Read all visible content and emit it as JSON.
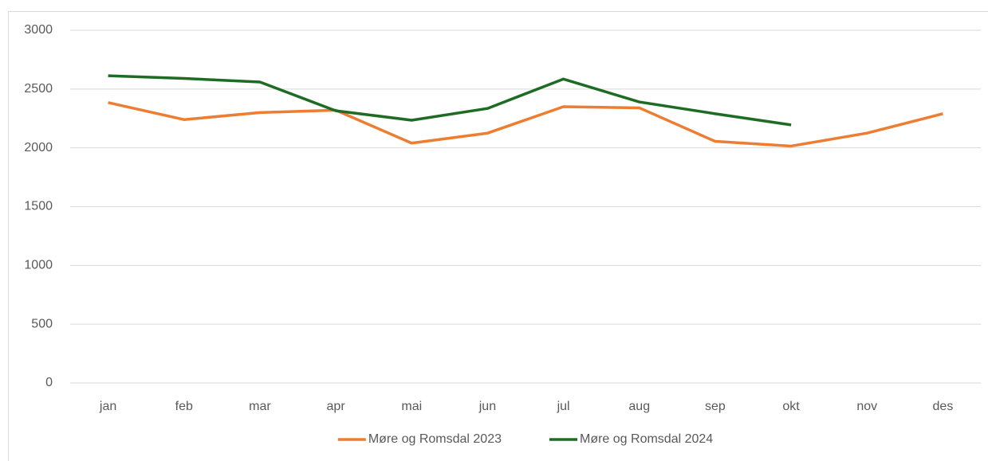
{
  "chart_data": {
    "type": "line",
    "categories": [
      "jan",
      "feb",
      "mar",
      "apr",
      "mai",
      "jun",
      "jul",
      "aug",
      "sep",
      "okt",
      "nov",
      "des"
    ],
    "series": [
      {
        "name": "Møre og Romsdal 2023",
        "color": "#ed7d31",
        "values": [
          2385,
          2240,
          2300,
          2320,
          2040,
          2125,
          2350,
          2340,
          2055,
          2015,
          2125,
          2290
        ]
      },
      {
        "name": "Møre og Romsdal 2024",
        "color": "#1e6b24",
        "values": [
          2613,
          2590,
          2560,
          2315,
          2235,
          2335,
          2585,
          2390,
          2290,
          2195,
          null,
          null
        ]
      }
    ],
    "ylim": [
      0,
      3000
    ],
    "yticks": [
      0,
      500,
      1000,
      1500,
      2000,
      2500,
      3000
    ],
    "grid": true,
    "legend": "bottom"
  }
}
